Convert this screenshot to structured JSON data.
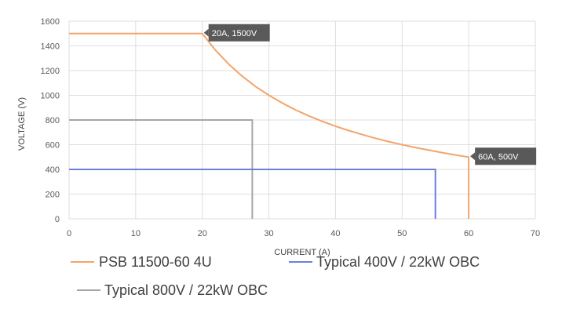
{
  "chart_data": {
    "type": "line",
    "title": "",
    "xlabel": "CURRENT   (A)",
    "ylabel": "VOLTAGE   (V)",
    "xlim": [
      0,
      70
    ],
    "ylim": [
      0,
      1600
    ],
    "x_ticks": [
      0,
      10,
      20,
      30,
      40,
      50,
      60,
      70
    ],
    "y_ticks": [
      0,
      200,
      400,
      600,
      800,
      1000,
      1200,
      1400,
      1600
    ],
    "grid": true,
    "legend_position": "bottom",
    "series": [
      {
        "name": "PSB 11500-60 4U",
        "color": "#f4a46a",
        "points": [
          [
            0,
            1500
          ],
          [
            20,
            1500
          ],
          [
            22,
            1364
          ],
          [
            24,
            1250
          ],
          [
            26,
            1154
          ],
          [
            28,
            1071
          ],
          [
            30,
            1000
          ],
          [
            32,
            938
          ],
          [
            34,
            882
          ],
          [
            36,
            833
          ],
          [
            38,
            789
          ],
          [
            40,
            750
          ],
          [
            42,
            714
          ],
          [
            44,
            682
          ],
          [
            46,
            652
          ],
          [
            48,
            625
          ],
          [
            50,
            600
          ],
          [
            52,
            577
          ],
          [
            54,
            556
          ],
          [
            56,
            536
          ],
          [
            58,
            517
          ],
          [
            60,
            500
          ],
          [
            60,
            0
          ]
        ]
      },
      {
        "name": "Typical 400V / 22kW OBC",
        "color": "#6a7fe0",
        "points": [
          [
            0,
            400
          ],
          [
            55,
            400
          ],
          [
            55,
            0
          ]
        ]
      },
      {
        "name": "Typical 800V / 22kW OBC",
        "color": "#a6a6a6",
        "points": [
          [
            0,
            800
          ],
          [
            27.5,
            800
          ],
          [
            27.5,
            0
          ]
        ]
      }
    ],
    "annotations": [
      {
        "label": "20A, 1500V",
        "x": 20,
        "y": 1500
      },
      {
        "label": "60A, 500V",
        "x": 60,
        "y": 500
      }
    ]
  },
  "colors": {
    "grid": "#dedede",
    "callout_bg": "#595959",
    "tick_text": "#595959"
  }
}
